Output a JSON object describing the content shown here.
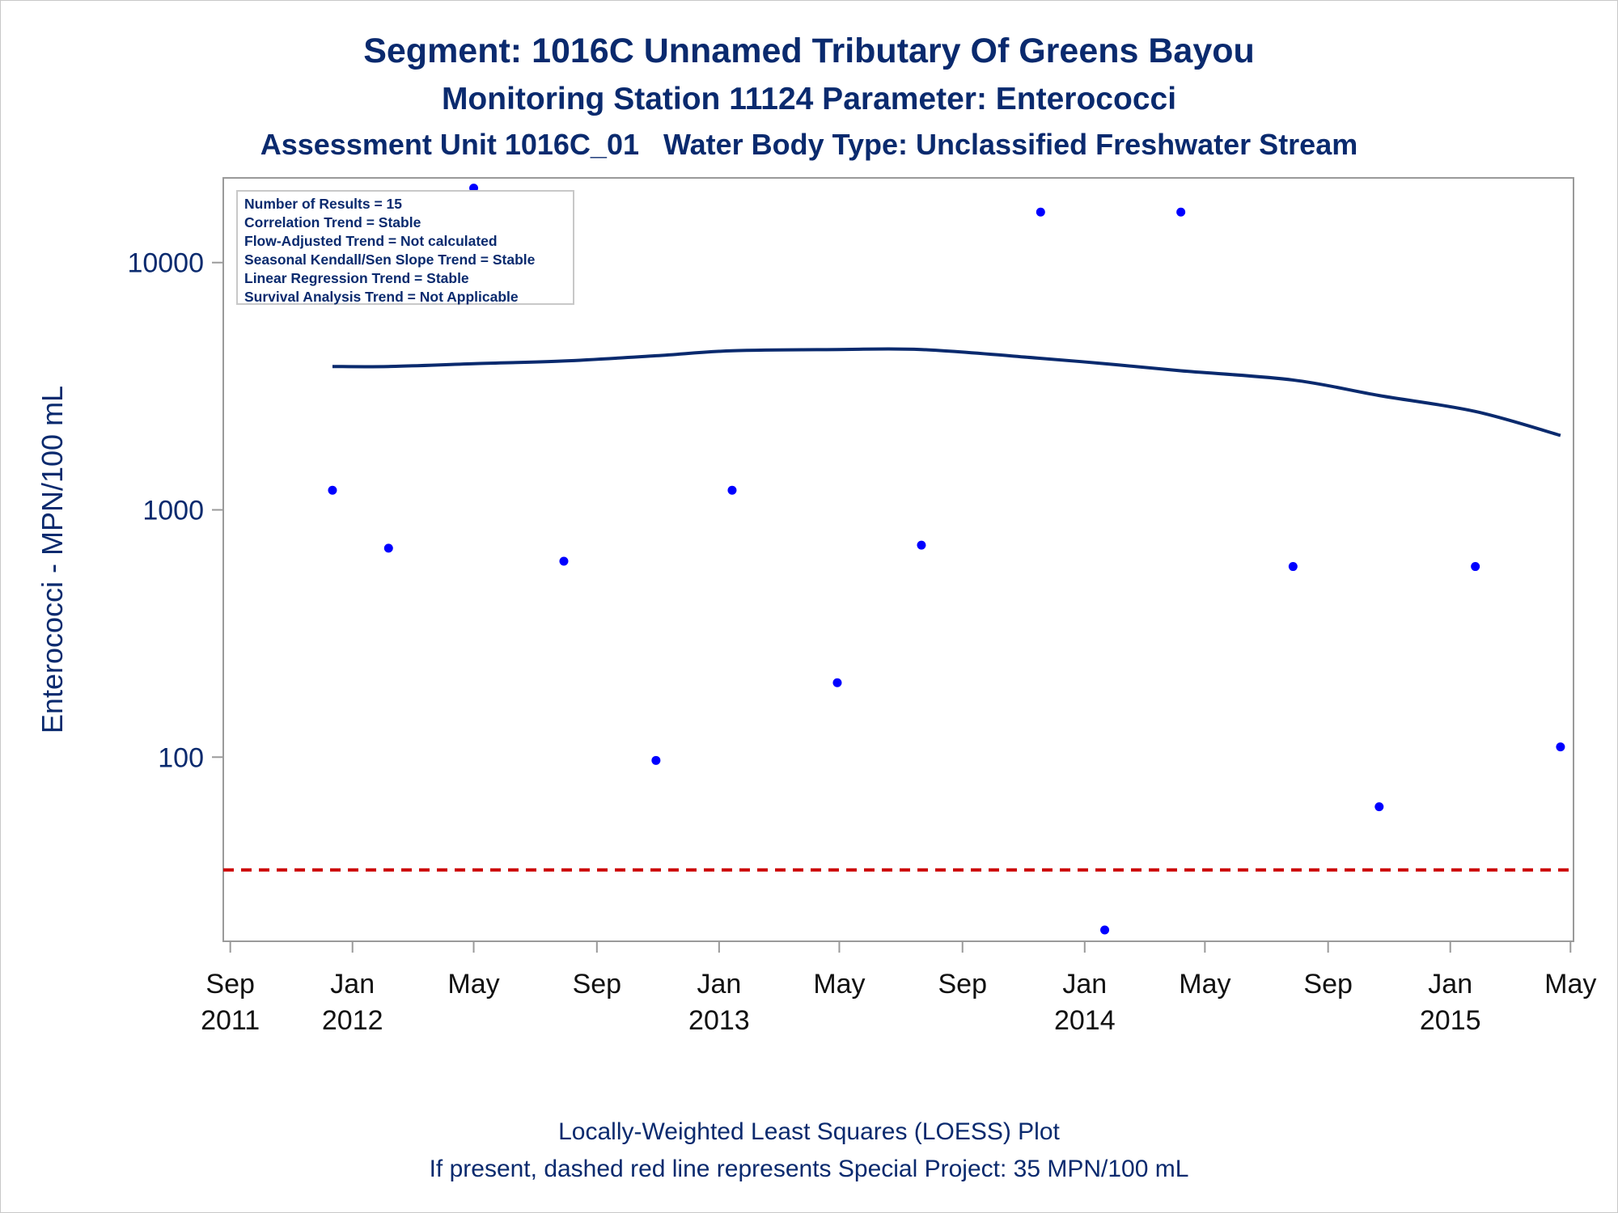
{
  "titles": {
    "line1": "Segment: 1016C  Unnamed Tributary Of Greens Bayou",
    "line2": "Monitoring Station 11124 Parameter: Enterococci",
    "line3": "Assessment Unit 1016C_01   Water Body Type: Unclassified Freshwater Stream"
  },
  "stats": [
    "Number of Results = 15",
    "Correlation Trend = Stable",
    "Flow-Adjusted Trend = Not calculated",
    "Seasonal Kendall/Sen Slope Trend = Stable",
    "Linear Regression Trend = Stable",
    "Survival Analysis Trend = Not Applicable"
  ],
  "footnotes": {
    "line1": "Locally-Weighted Least Squares (LOESS) Plot",
    "line2": "If present, dashed red line represents Special Project: 35 MPN/100 mL"
  },
  "chart_data": {
    "type": "scatter",
    "ylabel": "Enterococci - MPN/100 mL",
    "yscale": "log",
    "ylim": [
      18,
      22000
    ],
    "xlim": [
      "2011-08-25",
      "2015-05-04"
    ],
    "grid": false,
    "y_ticks": [
      100,
      1000,
      10000
    ],
    "x_ticks": [
      {
        "date": "2011-09-01",
        "label": [
          "Sep",
          "2011"
        ]
      },
      {
        "date": "2012-01-01",
        "label": [
          "Jan",
          "2012"
        ]
      },
      {
        "date": "2012-05-01",
        "label": [
          "May"
        ]
      },
      {
        "date": "2012-09-01",
        "label": [
          "Sep"
        ]
      },
      {
        "date": "2013-01-01",
        "label": [
          "Jan",
          "2013"
        ]
      },
      {
        "date": "2013-05-01",
        "label": [
          "May"
        ]
      },
      {
        "date": "2013-09-01",
        "label": [
          "Sep"
        ]
      },
      {
        "date": "2014-01-01",
        "label": [
          "Jan",
          "2014"
        ]
      },
      {
        "date": "2014-05-01",
        "label": [
          "May"
        ]
      },
      {
        "date": "2014-09-01",
        "label": [
          "Sep"
        ]
      },
      {
        "date": "2015-01-01",
        "label": [
          "Jan",
          "2015"
        ]
      },
      {
        "date": "2015-05-01",
        "label": [
          "May"
        ]
      }
    ],
    "points": [
      {
        "x": "2011-12-12",
        "y": 1200
      },
      {
        "x": "2012-02-06",
        "y": 700
      },
      {
        "x": "2012-05-01",
        "y": 20000
      },
      {
        "x": "2012-07-30",
        "y": 620
      },
      {
        "x": "2012-10-30",
        "y": 97
      },
      {
        "x": "2013-01-14",
        "y": 1200
      },
      {
        "x": "2013-04-29",
        "y": 200
      },
      {
        "x": "2013-07-22",
        "y": 720
      },
      {
        "x": "2013-11-18",
        "y": 16000
      },
      {
        "x": "2014-01-21",
        "y": 20
      },
      {
        "x": "2014-04-07",
        "y": 16000
      },
      {
        "x": "2014-07-28",
        "y": 590
      },
      {
        "x": "2014-10-22",
        "y": 63
      },
      {
        "x": "2015-01-26",
        "y": 590
      },
      {
        "x": "2015-04-21",
        "y": 110
      }
    ],
    "loess": [
      {
        "x": "2011-12-12",
        "y": 3800
      },
      {
        "x": "2012-02-06",
        "y": 3800
      },
      {
        "x": "2012-05-01",
        "y": 3900
      },
      {
        "x": "2012-07-30",
        "y": 4000
      },
      {
        "x": "2012-10-30",
        "y": 4200
      },
      {
        "x": "2013-01-14",
        "y": 4400
      },
      {
        "x": "2013-04-29",
        "y": 4450
      },
      {
        "x": "2013-07-22",
        "y": 4450
      },
      {
        "x": "2013-11-18",
        "y": 4100
      },
      {
        "x": "2014-01-21",
        "y": 3900
      },
      {
        "x": "2014-04-07",
        "y": 3650
      },
      {
        "x": "2014-07-28",
        "y": 3350
      },
      {
        "x": "2014-10-22",
        "y": 2900
      },
      {
        "x": "2015-01-26",
        "y": 2500
      },
      {
        "x": "2015-04-21",
        "y": 2000
      }
    ],
    "reference_line": {
      "y": 35,
      "style": "dashed",
      "color": "#cc0000"
    },
    "colors": {
      "points": "#0000ff",
      "loess": "#0a2a6e",
      "axis": "#9a9a9a",
      "text": "#0a2a6e"
    }
  }
}
